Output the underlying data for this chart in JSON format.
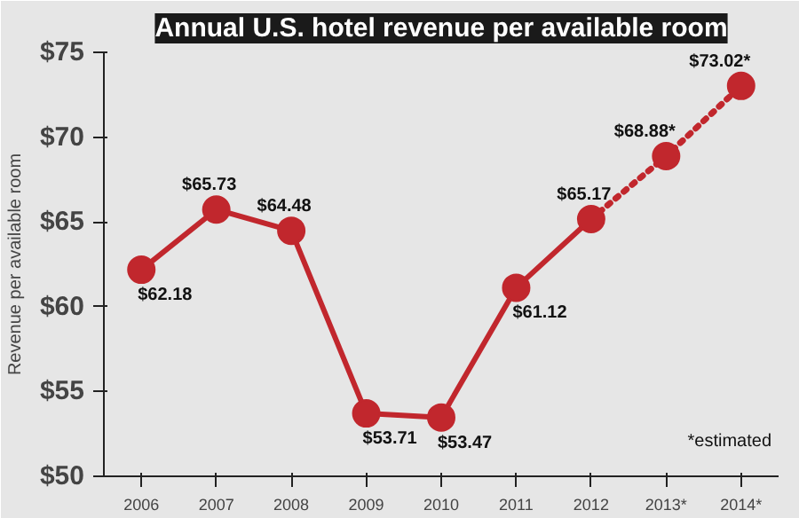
{
  "chart_data": {
    "type": "line",
    "title": "Annual U.S. hotel revenue per available room",
    "ylabel": "Revenue per available room",
    "categories": [
      "2006",
      "2007",
      "2008",
      "2009",
      "2010",
      "2011",
      "2012",
      "2013*",
      "2014*"
    ],
    "series": [
      {
        "color": "#c1272d",
        "line_style": "solid",
        "values": [
          62.18,
          65.73,
          64.48,
          53.71,
          53.47,
          61.12,
          65.17,
          null,
          null
        ],
        "value_labels": [
          "$62.18",
          "$65.73",
          "$64.48",
          "$53.71",
          "$53.47",
          "$61.12",
          "$65.17",
          null,
          null
        ]
      },
      {
        "color": "#c1272d",
        "line_style": "dotted",
        "values": [
          null,
          null,
          null,
          null,
          null,
          null,
          65.17,
          68.88,
          73.02
        ],
        "value_labels": [
          null,
          null,
          null,
          null,
          null,
          null,
          null,
          "$68.88*",
          "$73.02*"
        ]
      }
    ],
    "ylim": [
      50,
      75
    ],
    "yticks": [
      {
        "value": 50,
        "label": "$50"
      },
      {
        "value": 55,
        "label": "$55"
      },
      {
        "value": 60,
        "label": "$60"
      },
      {
        "value": 65,
        "label": "$65"
      },
      {
        "value": 70,
        "label": "$70"
      },
      {
        "value": 75,
        "label": "$75"
      }
    ],
    "marker": "circle",
    "annotations": [
      "*estimated"
    ]
  }
}
